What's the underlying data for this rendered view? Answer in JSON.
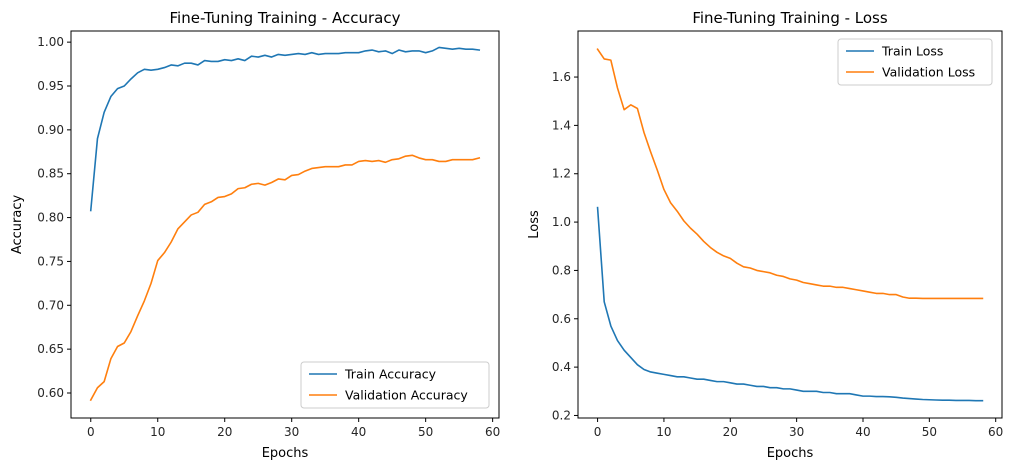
{
  "colors": {
    "train": "#1f77b4",
    "validation": "#ff7f0e",
    "axis": "#000000",
    "legend_border": "#cccccc"
  },
  "chart_data": [
    {
      "type": "line",
      "title": "Fine-Tuning Training - Accuracy",
      "xlabel": "Epochs",
      "ylabel": "Accuracy",
      "xlim": [
        -2.95,
        60.95
      ],
      "ylim": [
        0.5715,
        1.0127
      ],
      "xticks": [
        0,
        10,
        20,
        30,
        40,
        50,
        60
      ],
      "yticks": [
        0.6,
        0.65,
        0.7,
        0.75,
        0.8,
        0.85,
        0.9,
        0.95,
        1.0
      ],
      "ytick_labels": [
        "0.60",
        "0.65",
        "0.70",
        "0.75",
        "0.80",
        "0.85",
        "0.90",
        "0.95",
        "1.00"
      ],
      "legend_position": "lower-right",
      "grid": false,
      "series": [
        {
          "name": "Train Accuracy",
          "color_key": "train",
          "x": [
            0,
            1,
            2,
            3,
            4,
            5,
            6,
            7,
            8,
            9,
            10,
            11,
            12,
            13,
            14,
            15,
            16,
            17,
            18,
            19,
            20,
            21,
            22,
            23,
            24,
            25,
            26,
            27,
            28,
            29,
            30,
            31,
            32,
            33,
            34,
            35,
            36,
            37,
            38,
            39,
            40,
            41,
            42,
            43,
            44,
            45,
            46,
            47,
            48,
            49,
            50,
            51,
            52,
            53,
            54,
            55,
            56,
            57,
            58
          ],
          "y": [
            0.808,
            0.89,
            0.92,
            0.938,
            0.947,
            0.95,
            0.958,
            0.965,
            0.969,
            0.968,
            0.969,
            0.971,
            0.974,
            0.973,
            0.976,
            0.976,
            0.974,
            0.979,
            0.978,
            0.978,
            0.98,
            0.979,
            0.981,
            0.979,
            0.984,
            0.983,
            0.985,
            0.983,
            0.986,
            0.985,
            0.986,
            0.987,
            0.986,
            0.988,
            0.986,
            0.987,
            0.987,
            0.987,
            0.988,
            0.988,
            0.988,
            0.99,
            0.991,
            0.989,
            0.99,
            0.987,
            0.991,
            0.989,
            0.99,
            0.99,
            0.988,
            0.99,
            0.994,
            0.993,
            0.992,
            0.993,
            0.992,
            0.992,
            0.991
          ]
        },
        {
          "name": "Validation Accuracy",
          "color_key": "validation",
          "x": [
            0,
            1,
            2,
            3,
            4,
            5,
            6,
            7,
            8,
            9,
            10,
            11,
            12,
            13,
            14,
            15,
            16,
            17,
            18,
            19,
            20,
            21,
            22,
            23,
            24,
            25,
            26,
            27,
            28,
            29,
            30,
            31,
            32,
            33,
            34,
            35,
            36,
            37,
            38,
            39,
            40,
            41,
            42,
            43,
            44,
            45,
            46,
            47,
            48,
            49,
            50,
            51,
            52,
            53,
            54,
            55,
            56,
            57,
            58
          ],
          "y": [
            0.592,
            0.606,
            0.613,
            0.639,
            0.653,
            0.657,
            0.67,
            0.688,
            0.705,
            0.725,
            0.751,
            0.76,
            0.772,
            0.787,
            0.795,
            0.803,
            0.806,
            0.815,
            0.818,
            0.823,
            0.824,
            0.827,
            0.833,
            0.834,
            0.838,
            0.839,
            0.837,
            0.84,
            0.844,
            0.843,
            0.848,
            0.849,
            0.853,
            0.856,
            0.857,
            0.858,
            0.858,
            0.858,
            0.86,
            0.86,
            0.864,
            0.865,
            0.864,
            0.865,
            0.863,
            0.866,
            0.867,
            0.87,
            0.871,
            0.868,
            0.866,
            0.866,
            0.864,
            0.864,
            0.866,
            0.866,
            0.866,
            0.866,
            0.868
          ]
        }
      ]
    },
    {
      "type": "line",
      "title": "Fine-Tuning Training - Loss",
      "xlabel": "Epochs",
      "ylabel": "Loss",
      "xlim": [
        -2.95,
        60.95
      ],
      "ylim": [
        0.1895,
        1.7905
      ],
      "xticks": [
        0,
        10,
        20,
        30,
        40,
        50,
        60
      ],
      "yticks": [
        0.2,
        0.4,
        0.6,
        0.8,
        1.0,
        1.2,
        1.4,
        1.6
      ],
      "ytick_labels": [
        "0.2",
        "0.4",
        "0.6",
        "0.8",
        "1.0",
        "1.2",
        "1.4",
        "1.6"
      ],
      "legend_position": "upper-right",
      "grid": false,
      "series": [
        {
          "name": "Train Loss",
          "color_key": "train",
          "x": [
            0,
            1,
            2,
            3,
            4,
            5,
            6,
            7,
            8,
            9,
            10,
            11,
            12,
            13,
            14,
            15,
            16,
            17,
            18,
            19,
            20,
            21,
            22,
            23,
            24,
            25,
            26,
            27,
            28,
            29,
            30,
            31,
            32,
            33,
            34,
            35,
            36,
            37,
            38,
            39,
            40,
            41,
            42,
            43,
            44,
            45,
            46,
            47,
            48,
            49,
            50,
            51,
            52,
            53,
            54,
            55,
            56,
            57,
            58
          ],
          "y": [
            1.06,
            0.67,
            0.57,
            0.51,
            0.47,
            0.44,
            0.41,
            0.39,
            0.38,
            0.375,
            0.37,
            0.365,
            0.36,
            0.36,
            0.355,
            0.35,
            0.35,
            0.345,
            0.34,
            0.34,
            0.335,
            0.33,
            0.33,
            0.325,
            0.32,
            0.32,
            0.315,
            0.315,
            0.31,
            0.31,
            0.305,
            0.3,
            0.3,
            0.3,
            0.295,
            0.295,
            0.29,
            0.29,
            0.29,
            0.285,
            0.28,
            0.28,
            0.278,
            0.278,
            0.277,
            0.275,
            0.272,
            0.27,
            0.268,
            0.266,
            0.265,
            0.264,
            0.263,
            0.263,
            0.262,
            0.262,
            0.262,
            0.261,
            0.261
          ]
        },
        {
          "name": "Validation Loss",
          "color_key": "validation",
          "x": [
            0,
            1,
            2,
            3,
            4,
            5,
            6,
            7,
            8,
            9,
            10,
            11,
            12,
            13,
            14,
            15,
            16,
            17,
            18,
            19,
            20,
            21,
            22,
            23,
            24,
            25,
            26,
            27,
            28,
            29,
            30,
            31,
            32,
            33,
            34,
            35,
            36,
            37,
            38,
            39,
            40,
            41,
            42,
            43,
            44,
            45,
            46,
            47,
            48,
            49,
            50,
            51,
            52,
            53,
            54,
            55,
            56,
            57,
            58
          ],
          "y": [
            1.715,
            1.675,
            1.67,
            1.555,
            1.465,
            1.485,
            1.47,
            1.37,
            1.29,
            1.215,
            1.135,
            1.08,
            1.045,
            1.005,
            0.975,
            0.95,
            0.92,
            0.895,
            0.875,
            0.86,
            0.85,
            0.83,
            0.815,
            0.81,
            0.8,
            0.795,
            0.79,
            0.78,
            0.775,
            0.765,
            0.76,
            0.75,
            0.745,
            0.74,
            0.735,
            0.735,
            0.73,
            0.73,
            0.725,
            0.72,
            0.715,
            0.71,
            0.705,
            0.705,
            0.7,
            0.7,
            0.69,
            0.685,
            0.685,
            0.684,
            0.684,
            0.684,
            0.684,
            0.684,
            0.684,
            0.684,
            0.684,
            0.684,
            0.684
          ]
        }
      ]
    }
  ]
}
